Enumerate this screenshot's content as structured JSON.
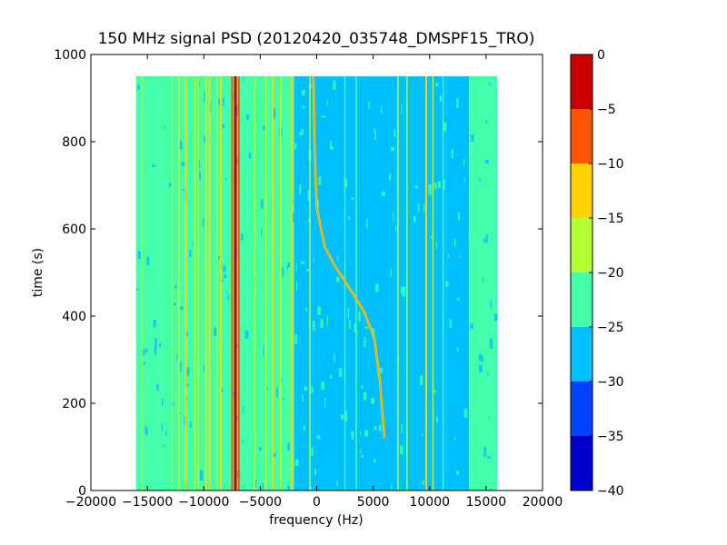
{
  "chart_data": {
    "type": "heatmap",
    "title": "150 MHz signal PSD (20120420_035748_DMSPF15_TRO)",
    "xlabel": "frequency (Hz)",
    "ylabel": "time (s)",
    "xlim": [
      -20000,
      20000
    ],
    "ylim": [
      0,
      1000
    ],
    "xticks": [
      -20000,
      -15000,
      -10000,
      -5000,
      0,
      5000,
      10000,
      15000,
      20000
    ],
    "xtick_labels": [
      "−20000",
      "−15000",
      "−10000",
      "−5000",
      "0",
      "5000",
      "10000",
      "15000",
      "20000"
    ],
    "yticks": [
      0,
      200,
      400,
      600,
      800,
      1000
    ],
    "ytick_labels": [
      "0",
      "200",
      "400",
      "600",
      "800",
      "1000"
    ],
    "data_extent": {
      "x": [
        -16000,
        16000
      ],
      "y": [
        0,
        950
      ]
    },
    "colorbar": {
      "range": [
        -40,
        0
      ],
      "levels": [
        -40,
        -35,
        -30,
        -25,
        -20,
        -15,
        -10,
        -5,
        0
      ],
      "tick_labels": [
        "−40",
        "−35",
        "−30",
        "−25",
        "−20",
        "−15",
        "−10",
        "−5",
        "0"
      ],
      "colors": [
        "#0000cc",
        "#0044ff",
        "#00bfff",
        "#44ffaa",
        "#b4ff32",
        "#ffd200",
        "#ff5500",
        "#cc0000"
      ]
    },
    "background_bands": [
      {
        "x": [
          -16000,
          -14000
        ],
        "level": -22.5
      },
      {
        "x": [
          -14000,
          -2000
        ],
        "level": -22.5
      },
      {
        "x": [
          -2000,
          11500
        ],
        "level": -27.5
      },
      {
        "x": [
          11500,
          13500
        ],
        "level": -27.5
      },
      {
        "x": [
          13500,
          16000
        ],
        "level": -22.5
      }
    ],
    "vertical_lines": [
      {
        "f": -15500,
        "level": -17.5
      },
      {
        "f": -12800,
        "level": -17.5
      },
      {
        "f": -12200,
        "level": -17.5
      },
      {
        "f": -11600,
        "level": -12.5
      },
      {
        "f": -10800,
        "level": -17.5
      },
      {
        "f": -10500,
        "level": -17.5
      },
      {
        "f": -9800,
        "level": -17.5
      },
      {
        "f": -9500,
        "level": -12.5
      },
      {
        "f": -8800,
        "level": -17.5
      },
      {
        "f": -8500,
        "level": -12.5
      },
      {
        "f": -7500,
        "level": -7.5
      },
      {
        "f": -7200,
        "level": -2.5
      },
      {
        "f": -6900,
        "level": -7.5
      },
      {
        "f": -5500,
        "level": -17.5
      },
      {
        "f": -4500,
        "level": -17.5
      },
      {
        "f": -3900,
        "level": -12.5
      },
      {
        "f": -3200,
        "level": -17.5
      },
      {
        "f": -2200,
        "level": -12.5
      },
      {
        "f": -600,
        "level": -17.5
      },
      {
        "f": 2500,
        "level": -22.5
      },
      {
        "f": 3500,
        "level": -22.5
      },
      {
        "f": 7200,
        "level": -17.5
      },
      {
        "f": 8000,
        "level": -17.5
      },
      {
        "f": 9700,
        "level": -12.5
      },
      {
        "f": 10300,
        "level": -17.5
      },
      {
        "f": 11200,
        "level": -22.5
      }
    ],
    "doppler_trace": {
      "level": -12.5,
      "points": [
        {
          "f": -300,
          "t": 950
        },
        {
          "f": -200,
          "t": 800
        },
        {
          "f": 0,
          "t": 650
        },
        {
          "f": 700,
          "t": 560
        },
        {
          "f": 1500,
          "t": 520
        },
        {
          "f": 3000,
          "t": 460
        },
        {
          "f": 4200,
          "t": 410
        },
        {
          "f": 5100,
          "t": 350
        },
        {
          "f": 5600,
          "t": 250
        },
        {
          "f": 5900,
          "t": 150
        },
        {
          "f": 6000,
          "t": 120
        }
      ]
    }
  }
}
